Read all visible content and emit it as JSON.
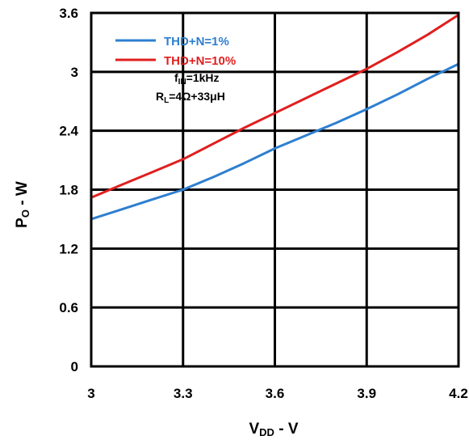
{
  "chart_data": {
    "type": "line",
    "xlabel": {
      "main": "V",
      "sub": "DD",
      "suffix": " - V"
    },
    "ylabel": {
      "main": "P",
      "sub": "O",
      "suffix": " - W"
    },
    "xlim": [
      3,
      4.2
    ],
    "ylim": [
      0,
      3.6
    ],
    "x_ticks": [
      "3",
      "3.3",
      "3.6",
      "3.9",
      "4.2"
    ],
    "y_ticks": [
      "0",
      "0.6",
      "1.2",
      "1.8",
      "2.4",
      "3",
      "3.6"
    ],
    "grid": true,
    "legend_placement": "top-left",
    "series": [
      {
        "name": "THD+N=1%",
        "color": "#2e7fd0",
        "x": [
          3.0,
          3.1,
          3.2,
          3.3,
          3.4,
          3.5,
          3.6,
          3.7,
          3.8,
          3.9,
          4.0,
          4.1,
          4.2
        ],
        "y": [
          1.5,
          1.6,
          1.7,
          1.8,
          1.93,
          2.07,
          2.22,
          2.35,
          2.48,
          2.62,
          2.77,
          2.93,
          3.08
        ]
      },
      {
        "name": "THD+N=10%",
        "color": "#e01f1f",
        "x": [
          3.0,
          3.1,
          3.2,
          3.3,
          3.4,
          3.5,
          3.6,
          3.7,
          3.8,
          3.9,
          4.0,
          4.1,
          4.2
        ],
        "y": [
          1.72,
          1.85,
          1.98,
          2.11,
          2.27,
          2.43,
          2.58,
          2.73,
          2.88,
          3.03,
          3.2,
          3.38,
          3.58
        ]
      }
    ],
    "annotations": [
      {
        "main": "f",
        "sub": "IN",
        "rest": "=1kHz"
      },
      {
        "main": "R",
        "sub": "L",
        "rest": "=4Ω+33μH"
      }
    ]
  }
}
